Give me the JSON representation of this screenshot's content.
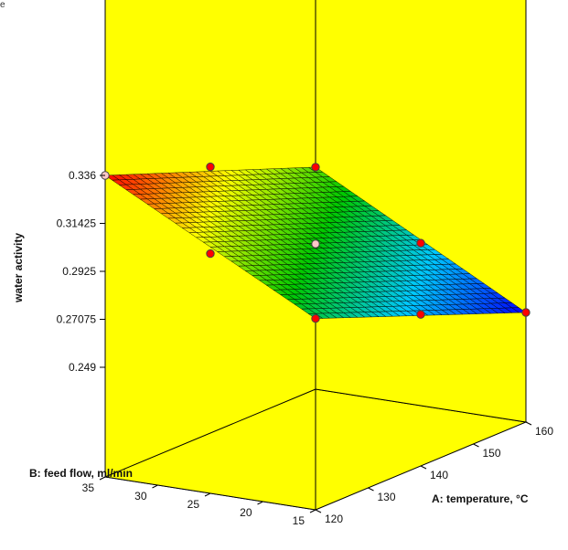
{
  "corner_text": "e",
  "chart_data": {
    "type": "surface",
    "title": "",
    "colors": {
      "background": "#ffff00",
      "frame": "#000000",
      "design_point_fill": "#ff0000",
      "center_point_fill": "#ffc8c8",
      "colormap": [
        "#0000ff",
        "#00c8ff",
        "#00c800",
        "#ffff00",
        "#ff0000"
      ]
    },
    "x_axis": {
      "label": "A: temperature, °C",
      "range": [
        120,
        160
      ],
      "ticks": [
        120,
        130,
        140,
        150,
        160
      ]
    },
    "y_axis": {
      "label": "B: feed flow, ml/min",
      "range": [
        15,
        35
      ],
      "ticks": [
        15,
        20,
        25,
        30,
        35
      ]
    },
    "z_axis": {
      "label": "water activity",
      "range": [
        0.249,
        0.336
      ],
      "ticks": [
        0.249,
        0.27075,
        0.2925,
        0.31425,
        0.336
      ],
      "tick_labels": [
        "0.249",
        "0.27075",
        "0.2925",
        "0.31425",
        "0.336"
      ]
    },
    "surface_corners": [
      {
        "temperature": 120,
        "feed_flow": 35,
        "water_activity": 0.336
      },
      {
        "temperature": 160,
        "feed_flow": 35,
        "water_activity": 0.3
      },
      {
        "temperature": 160,
        "feed_flow": 15,
        "water_activity": 0.249
      },
      {
        "temperature": 120,
        "feed_flow": 15,
        "water_activity": 0.286
      }
    ],
    "design_points": [
      {
        "temperature": 120,
        "feed_flow": 35,
        "water_activity": 0.336,
        "kind": "axial"
      },
      {
        "temperature": 140,
        "feed_flow": 35,
        "water_activity": 0.32,
        "kind": "factorial"
      },
      {
        "temperature": 160,
        "feed_flow": 35,
        "water_activity": 0.3,
        "kind": "factorial"
      },
      {
        "temperature": 120,
        "feed_flow": 25,
        "water_activity": 0.308,
        "kind": "factorial"
      },
      {
        "temperature": 140,
        "feed_flow": 25,
        "water_activity": 0.2925,
        "kind": "center"
      },
      {
        "temperature": 160,
        "feed_flow": 25,
        "water_activity": 0.273,
        "kind": "axial"
      },
      {
        "temperature": 120,
        "feed_flow": 15,
        "water_activity": 0.286,
        "kind": "axial"
      },
      {
        "temperature": 140,
        "feed_flow": 15,
        "water_activity": 0.268,
        "kind": "factorial"
      },
      {
        "temperature": 160,
        "feed_flow": 15,
        "water_activity": 0.249,
        "kind": "factorial"
      }
    ],
    "mesh_resolution": [
      30,
      30
    ]
  }
}
